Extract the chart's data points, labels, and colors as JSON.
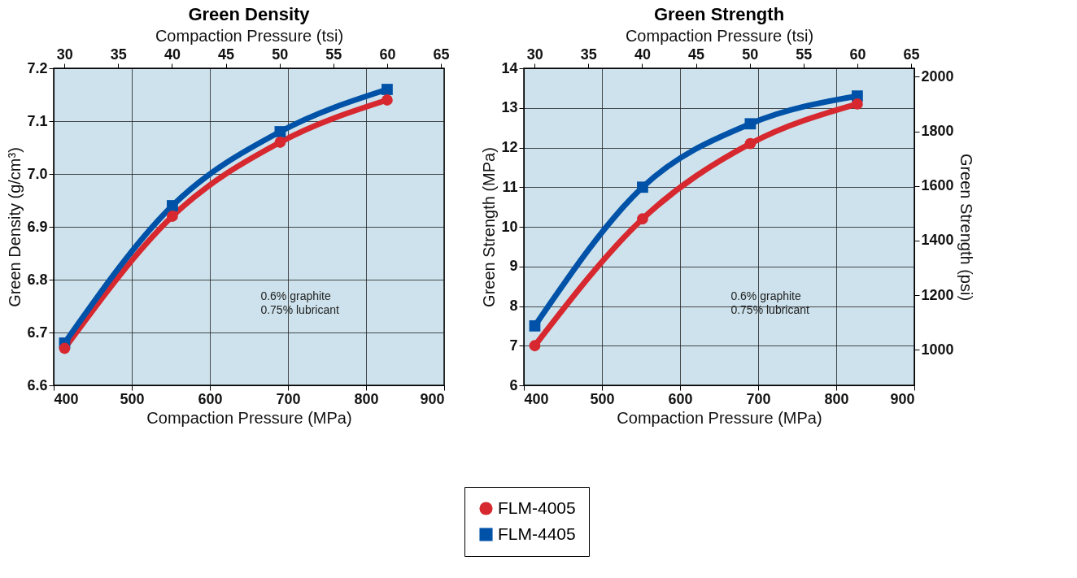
{
  "chart_data": [
    {
      "type": "line",
      "title": "Green Density",
      "x2label": "Compaction Pressure (tsi)",
      "xlabel": "Compaction Pressure (MPa)",
      "ylabel": "Green Density (g/cm³)",
      "x": [
        414,
        552,
        690,
        827
      ],
      "xlim": [
        400,
        900
      ],
      "xticks": [
        400,
        500,
        600,
        700,
        800,
        900
      ],
      "x2lim": [
        29.0,
        65.3
      ],
      "x2ticks": [
        30,
        35,
        40,
        45,
        50,
        55,
        60,
        65
      ],
      "ylim": [
        6.6,
        7.2
      ],
      "yticks": [
        {
          "value": 6.6,
          "label": "6.6"
        },
        6.7,
        6.8,
        6.9,
        {
          "value": 7,
          "label": "7.0"
        },
        7.1,
        7.2
      ],
      "grid": true,
      "legend": "bottom",
      "annotations": [
        "0.6% graphite",
        "0.75% lubricant"
      ],
      "series": [
        {
          "name": "FLM-4005",
          "color": "#d7282f",
          "marker": "circle",
          "values": [
            6.67,
            6.92,
            7.06,
            7.14
          ]
        },
        {
          "name": "FLM-4405",
          "color": "#0052a8",
          "marker": "square",
          "values": [
            6.68,
            6.94,
            7.08,
            7.16
          ]
        }
      ]
    },
    {
      "type": "line",
      "title": "Green Strength",
      "x2label": "Compaction Pressure (tsi)",
      "xlabel": "Compaction Pressure (MPa)",
      "ylabel": "Green Strength (MPa)",
      "y2label": "Green Strength (psi)",
      "x": [
        414,
        552,
        690,
        827
      ],
      "xlim": [
        400,
        900
      ],
      "xticks": [
        400,
        500,
        600,
        700,
        800,
        900
      ],
      "x2lim": [
        29.0,
        65.3
      ],
      "x2ticks": [
        30,
        35,
        40,
        45,
        50,
        55,
        60,
        65
      ],
      "ylim": [
        6,
        14
      ],
      "yticks": [
        6,
        7,
        8,
        9,
        10,
        11,
        12,
        13,
        14
      ],
      "y2lim": [
        870,
        2031
      ],
      "y2ticks": [
        1000,
        1200,
        1400,
        1600,
        1800,
        2000
      ],
      "grid": true,
      "annotations": [
        "0.6% graphite",
        "0.75% lubricant"
      ],
      "series": [
        {
          "name": "FLM-4005",
          "color": "#d7282f",
          "marker": "circle",
          "values": [
            7.0,
            10.2,
            12.1,
            13.1
          ]
        },
        {
          "name": "FLM-4405",
          "color": "#0052a8",
          "marker": "square",
          "values": [
            7.5,
            11.0,
            12.6,
            13.3
          ]
        }
      ]
    }
  ]
}
